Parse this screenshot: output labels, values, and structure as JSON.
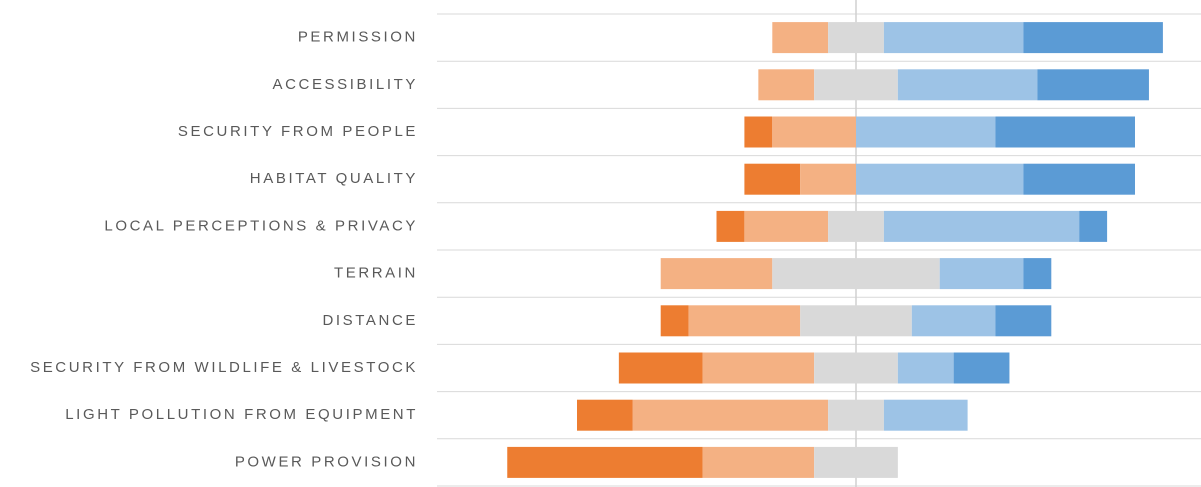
{
  "chart_data": {
    "type": "bar",
    "orientation": "horizontal",
    "diverging": true,
    "categories": [
      "PERMISSION",
      "ACCESSIBILITY",
      "SECURITY FROM PEOPLE",
      "HABITAT QUALITY",
      "LOCAL PERCEPTIONS & PRIVACY",
      "TERRAIN",
      "DISTANCE",
      "SECURITY FROM WILDLIFE & LIVESTOCK",
      "LIGHT POLLUTION FROM EQUIPMENT",
      "POWER PROVISION"
    ],
    "series": [
      {
        "color": "#ed7d31",
        "values": [
          0,
          0,
          1,
          2,
          1,
          0,
          1,
          3,
          2,
          7
        ]
      },
      {
        "color": "#f4b183",
        "values": [
          2,
          2,
          3,
          2,
          3,
          4,
          4,
          4,
          7,
          4
        ]
      },
      {
        "color": "#d9d9d9",
        "values": [
          2,
          3,
          0,
          0,
          2,
          6,
          4,
          3,
          2,
          3
        ]
      },
      {
        "color": "#9dc3e6",
        "values": [
          5,
          5,
          5,
          6,
          7,
          3,
          3,
          2,
          3,
          0
        ]
      },
      {
        "color": "#5b9bd5",
        "values": [
          5,
          4,
          5,
          4,
          1,
          1,
          2,
          2,
          0,
          0
        ]
      }
    ]
  }
}
